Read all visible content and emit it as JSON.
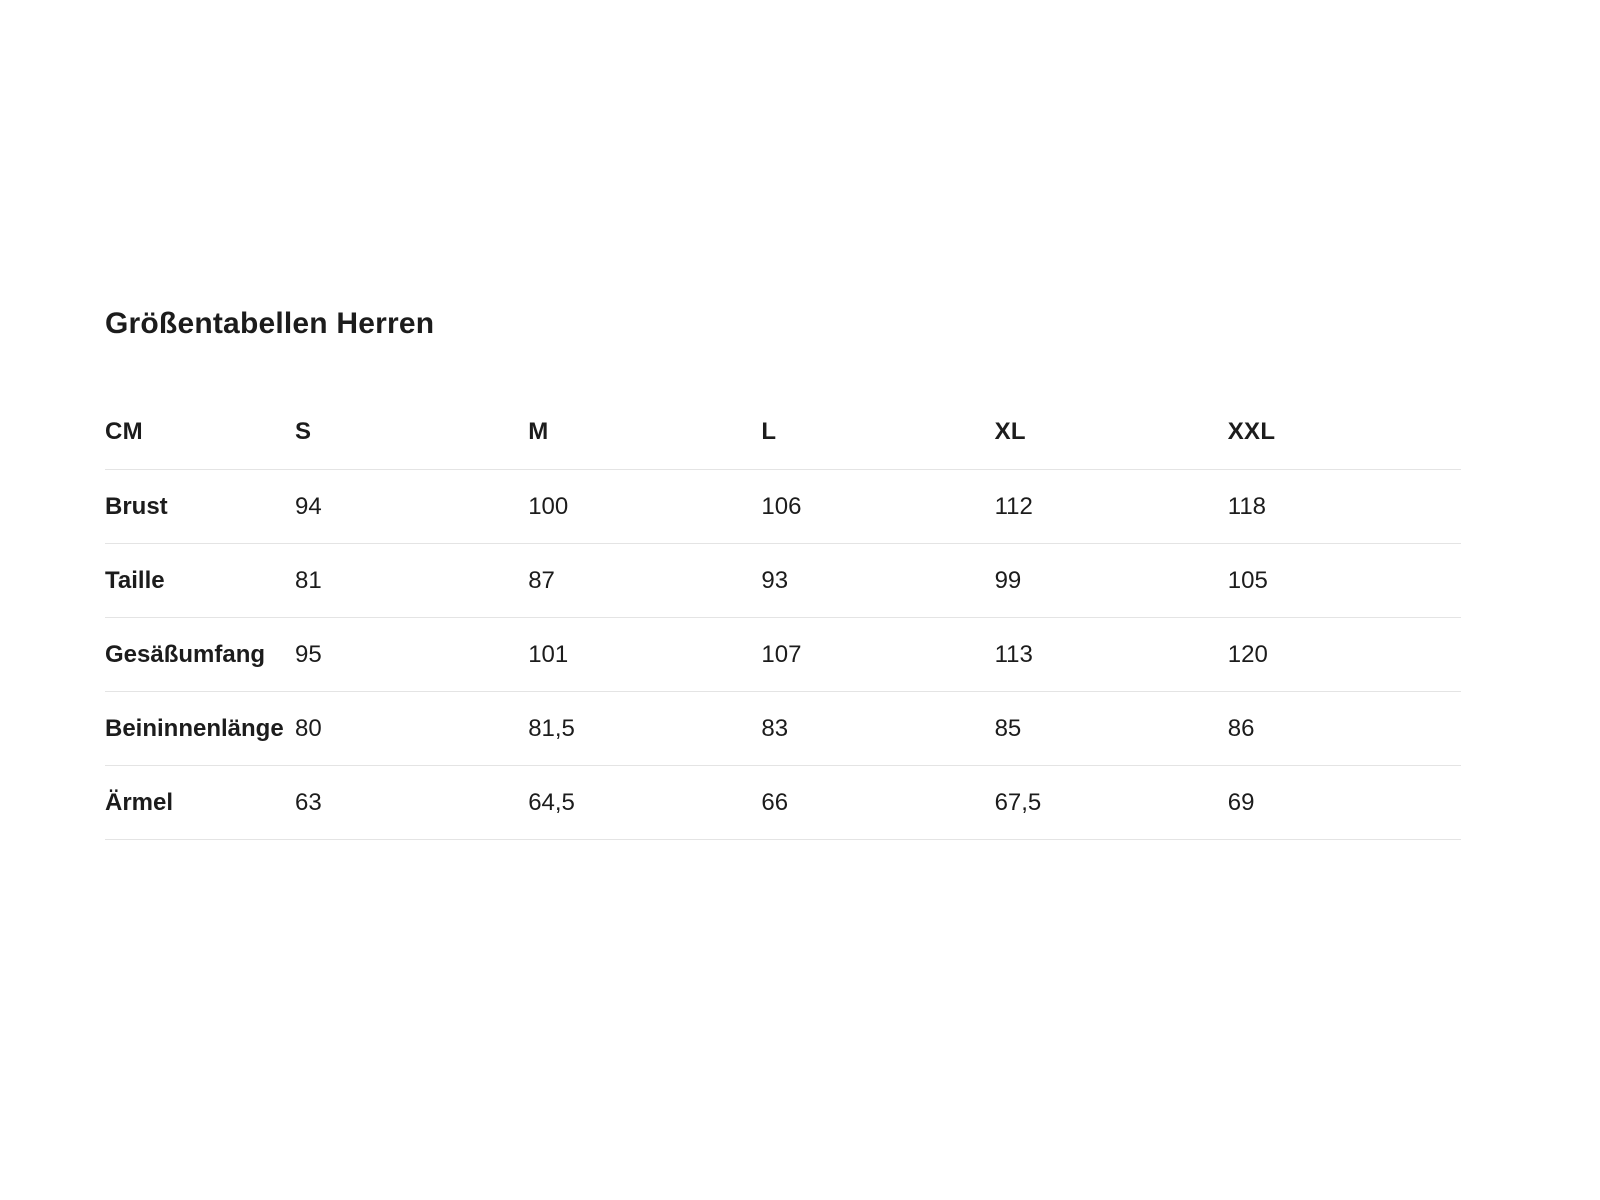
{
  "page": {
    "title": "Größentabellen Herren"
  },
  "colors": {
    "background": "#ffffff",
    "text": "#1c1c1c",
    "divider": "#e4e4e4"
  },
  "chart_data": {
    "type": "table",
    "title": "Größentabellen Herren",
    "unit": "CM",
    "columns": [
      "CM",
      "S",
      "M",
      "L",
      "XL",
      "XXL"
    ],
    "rows": [
      {
        "label": "Brust",
        "values": [
          "94",
          "100",
          "106",
          "112",
          "118"
        ]
      },
      {
        "label": "Taille",
        "values": [
          "81",
          "87",
          "93",
          "99",
          "105"
        ]
      },
      {
        "label": "Gesäßumfang",
        "values": [
          "95",
          "101",
          "107",
          "113",
          "120"
        ]
      },
      {
        "label": "Beininnenlänge",
        "values": [
          "80",
          "81,5",
          "83",
          "85",
          "86"
        ]
      },
      {
        "label": "Ärmel",
        "values": [
          "63",
          "64,5",
          "66",
          "67,5",
          "69"
        ]
      }
    ]
  }
}
